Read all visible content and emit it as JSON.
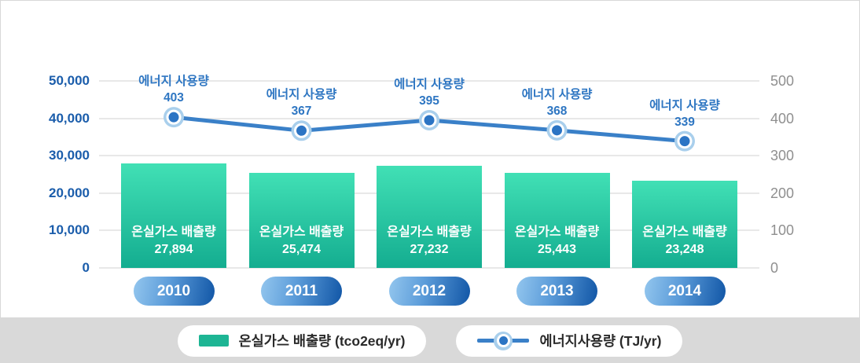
{
  "chart_data": {
    "type": "bar+line",
    "title": "",
    "categories": [
      "2010",
      "2011",
      "2012",
      "2013",
      "2014"
    ],
    "series": [
      {
        "name": "온실가스 배출량 (tco2eq/yr)",
        "type": "bar",
        "axis": "left",
        "bar_label_title": "온실가스 배출량",
        "values": [
          27894,
          25474,
          27232,
          25443,
          23248
        ]
      },
      {
        "name": "에너지사용량 (TJ/yr)",
        "type": "line",
        "axis": "right",
        "point_label_title": "에너지 사용량",
        "values": [
          403,
          367,
          395,
          368,
          339
        ]
      }
    ],
    "left_axis": {
      "min": 0,
      "max": 50000,
      "ticks": [
        "0",
        "10,000",
        "20,000",
        "30,000",
        "40,000",
        "50,000"
      ]
    },
    "right_axis": {
      "min": 0,
      "max": 500,
      "ticks": [
        "0",
        "100",
        "200",
        "300",
        "400",
        "500"
      ]
    },
    "grid": true,
    "legend_position": "bottom"
  },
  "legend": {
    "bar_label": "온실가스 배출량 (tco2eq/yr)",
    "line_label": "에너지사용량 (TJ/yr)"
  },
  "colors": {
    "bar_gradient_top": "#41e0b5",
    "bar_gradient_bottom": "#14ad90",
    "legend_swatch": "#1db594",
    "line": "#3a80c8",
    "marker_core": "#2b74c4",
    "marker_ring": "#a9cfec",
    "point_label_text": "#2e76c2",
    "left_axis_text": "#1b5dab",
    "right_axis_text": "#8f8f8f",
    "gridline": "#e8e8e8",
    "year_pill_light": "#93c6ee",
    "year_pill_dark": "#1156a6",
    "legend_band_bg": "#d9d9d9",
    "panel_border": "#d8d8d8"
  }
}
